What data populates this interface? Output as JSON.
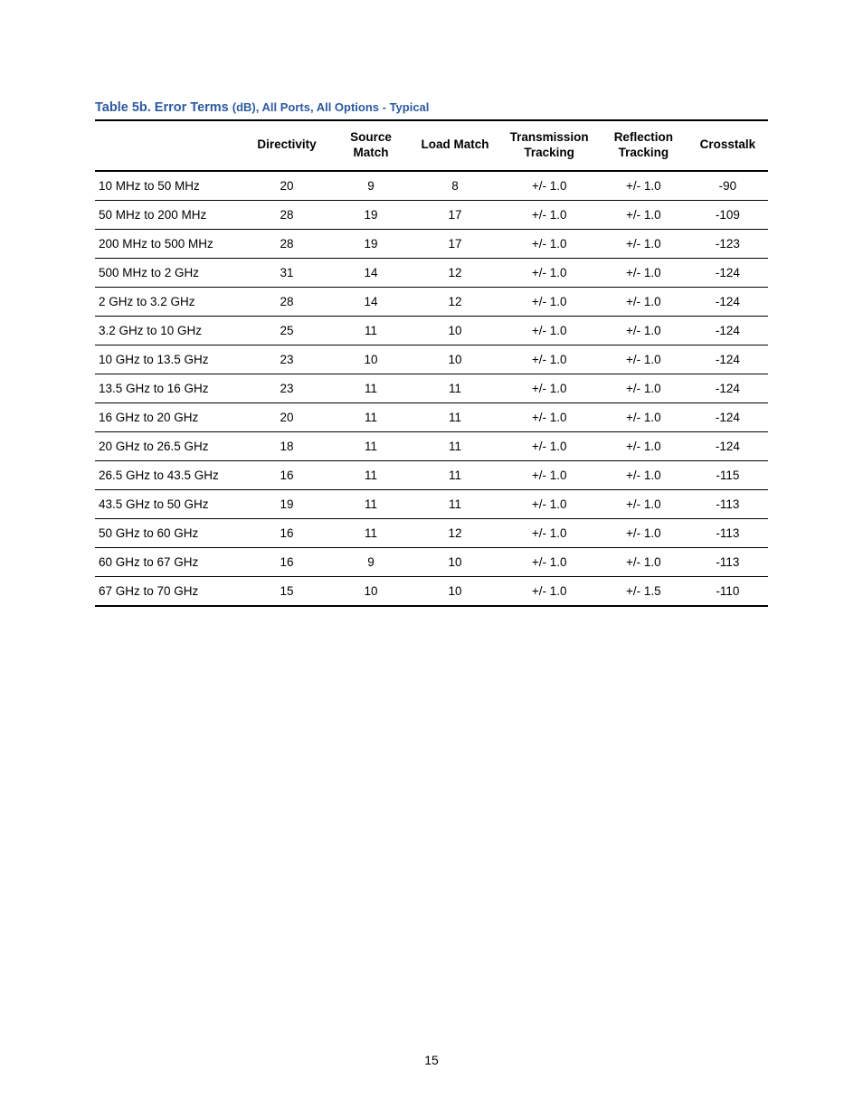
{
  "title": {
    "bold": "Table 5b. Error Terms ",
    "regular": "(dB), All Ports, All Options - Typical",
    "color": "#2c5aa0"
  },
  "table": {
    "columns": [
      "",
      "Directivity",
      "Source Match",
      "Load Match",
      "Transmission Tracking",
      "Reflection Tracking",
      "Crosstalk"
    ],
    "col_widths_pct": [
      22,
      13,
      12,
      13,
      15,
      13,
      12
    ],
    "header_border_color": "#000000",
    "row_border_color": "#000000",
    "font_size_pt": 13.5,
    "rows": [
      [
        "10 MHz to 50 MHz",
        "20",
        "9",
        "8",
        "+/- 1.0",
        "+/- 1.0",
        "-90"
      ],
      [
        "50 MHz to 200 MHz",
        "28",
        "19",
        "17",
        "+/- 1.0",
        "+/- 1.0",
        "-109"
      ],
      [
        "200 MHz to 500 MHz",
        "28",
        "19",
        "17",
        "+/- 1.0",
        "+/- 1.0",
        "-123"
      ],
      [
        "500 MHz to 2 GHz",
        "31",
        "14",
        "12",
        "+/- 1.0",
        "+/- 1.0",
        "-124"
      ],
      [
        "2 GHz to 3.2 GHz",
        "28",
        "14",
        "12",
        "+/- 1.0",
        "+/- 1.0",
        "-124"
      ],
      [
        "3.2 GHz to 10 GHz",
        "25",
        "11",
        "10",
        "+/- 1.0",
        "+/- 1.0",
        "-124"
      ],
      [
        "10 GHz to 13.5 GHz",
        "23",
        "10",
        "10",
        "+/- 1.0",
        "+/- 1.0",
        "-124"
      ],
      [
        "13.5 GHz to 16 GHz",
        "23",
        "11",
        "11",
        "+/- 1.0",
        "+/- 1.0",
        "-124"
      ],
      [
        "16 GHz to 20 GHz",
        "20",
        "11",
        "11",
        "+/- 1.0",
        "+/- 1.0",
        "-124"
      ],
      [
        "20 GHz to 26.5 GHz",
        "18",
        "11",
        "11",
        "+/- 1.0",
        "+/- 1.0",
        "-124"
      ],
      [
        "26.5 GHz to 43.5 GHz",
        "16",
        "11",
        "11",
        "+/- 1.0",
        "+/- 1.0",
        "-115"
      ],
      [
        "43.5 GHz to 50 GHz",
        "19",
        "11",
        "11",
        "+/- 1.0",
        "+/- 1.0",
        "-113"
      ],
      [
        "50 GHz to 60 GHz",
        "16",
        "11",
        "12",
        "+/- 1.0",
        "+/- 1.0",
        "-113"
      ],
      [
        "60 GHz to 67 GHz",
        "16",
        "9",
        "10",
        "+/- 1.0",
        "+/- 1.0",
        "-113"
      ],
      [
        "67 GHz to 70 GHz",
        "15",
        "10",
        "10",
        "+/- 1.0",
        "+/- 1.5",
        "-110"
      ]
    ]
  },
  "page_number": "15"
}
